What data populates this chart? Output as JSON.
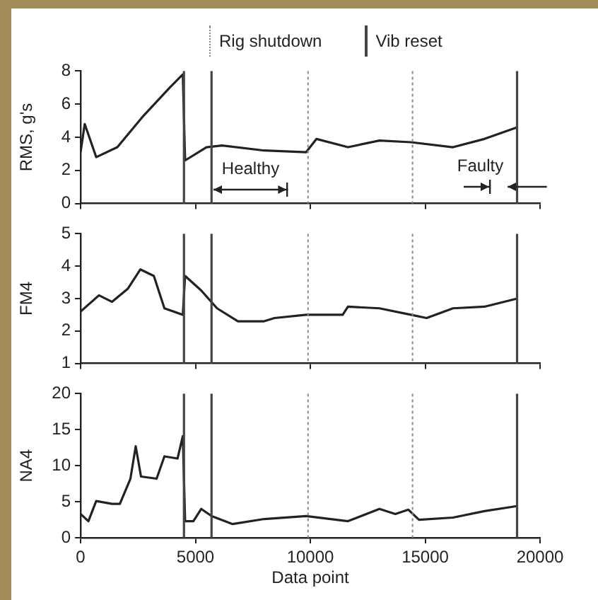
{
  "chart_data": [
    {
      "type": "line",
      "ylabel": "RMS, g's",
      "color": "#222222",
      "marker": "none",
      "line_style": "solid",
      "legend": "top",
      "grid": false,
      "tick_labels": "y",
      "x": [
        0,
        180,
        680,
        1600,
        2740,
        3880,
        4450,
        4550,
        5480,
        6160,
        7990,
        9820,
        10270,
        11640,
        13010,
        14380,
        16210,
        17580,
        19000
      ],
      "values": [
        3.1,
        4.8,
        2.8,
        3.4,
        5.3,
        7.0,
        7.8,
        2.6,
        3.4,
        3.5,
        3.2,
        3.1,
        3.9,
        3.4,
        3.8,
        3.7,
        3.4,
        3.9,
        4.6
      ],
      "xlim": [
        0,
        20000
      ],
      "xticks": [
        0,
        5000,
        10000,
        15000,
        20000
      ],
      "ylim": [
        0,
        8
      ],
      "yticks": [
        0,
        2,
        4,
        6,
        8
      ],
      "ref_lines": [
        {
          "axis": "x",
          "value": 9900,
          "label": "Rig shutdown",
          "line_style": "dotted"
        },
        {
          "axis": "x",
          "value": 14450,
          "line_style": "dotted"
        },
        {
          "axis": "x",
          "value": 4500,
          "label": "Vib reset",
          "line_style": "solid"
        },
        {
          "axis": "x",
          "value": 5700,
          "line_style": "solid"
        },
        {
          "axis": "x",
          "value": 19000,
          "line_style": "solid"
        }
      ],
      "annotations": [
        "Healthy",
        "Faulty"
      ]
    },
    {
      "type": "line",
      "ylabel": "FM4",
      "color": "#222222",
      "marker": "none",
      "line_style": "solid",
      "grid": false,
      "tick_labels": "y",
      "x": [
        0,
        800,
        1370,
        2050,
        2600,
        3190,
        3650,
        4450,
        4550,
        5250,
        5940,
        6850,
        7990,
        8440,
        9820,
        11410,
        11640,
        13010,
        14380,
        15060,
        16210,
        17580,
        19000
      ],
      "values": [
        2.6,
        3.1,
        2.9,
        3.3,
        3.9,
        3.7,
        2.7,
        2.5,
        3.7,
        3.25,
        2.7,
        2.3,
        2.3,
        2.4,
        2.5,
        2.5,
        2.75,
        2.7,
        2.5,
        2.4,
        2.7,
        2.75,
        3.0
      ],
      "xlim": [
        0,
        20000
      ],
      "xticks": [
        0,
        5000,
        10000,
        15000,
        20000
      ],
      "ylim": [
        1,
        5
      ],
      "yticks": [
        1,
        2,
        3,
        4,
        5
      ],
      "ref_lines": [
        {
          "axis": "x",
          "value": 9900,
          "line_style": "dotted"
        },
        {
          "axis": "x",
          "value": 14450,
          "line_style": "dotted"
        },
        {
          "axis": "x",
          "value": 4500,
          "line_style": "solid"
        },
        {
          "axis": "x",
          "value": 5700,
          "line_style": "solid"
        },
        {
          "axis": "x",
          "value": 19000,
          "line_style": "solid"
        }
      ]
    },
    {
      "type": "line",
      "ylabel": "NA4",
      "xlabel": "Data point",
      "color": "#222222",
      "marker": "none",
      "line_style": "solid",
      "grid": false,
      "x": [
        0,
        340,
        680,
        1370,
        1710,
        2170,
        2400,
        2630,
        3310,
        3650,
        4220,
        4450,
        4550,
        4910,
        5250,
        5710,
        6620,
        7990,
        9820,
        11640,
        13010,
        13700,
        14270,
        14730,
        16210,
        17580,
        19000
      ],
      "values": [
        3.3,
        2.3,
        5.1,
        4.7,
        4.7,
        8.2,
        12.7,
        8.5,
        8.2,
        11.3,
        11.0,
        14.1,
        2.3,
        2.3,
        4.0,
        3.0,
        1.9,
        2.6,
        3.0,
        2.3,
        4.0,
        3.3,
        3.9,
        2.5,
        2.8,
        3.7,
        4.4
      ],
      "xlim": [
        0,
        20000
      ],
      "xticks": [
        0,
        5000,
        10000,
        15000,
        20000
      ],
      "ylim": [
        0,
        20
      ],
      "yticks": [
        0,
        5,
        10,
        15,
        20
      ],
      "ref_lines": [
        {
          "axis": "x",
          "value": 9900,
          "line_style": "dotted"
        },
        {
          "axis": "x",
          "value": 14450,
          "line_style": "dotted"
        },
        {
          "axis": "x",
          "value": 4500,
          "line_style": "solid"
        },
        {
          "axis": "x",
          "value": 5700,
          "line_style": "solid"
        },
        {
          "axis": "x",
          "value": 19000,
          "line_style": "solid"
        }
      ]
    }
  ]
}
